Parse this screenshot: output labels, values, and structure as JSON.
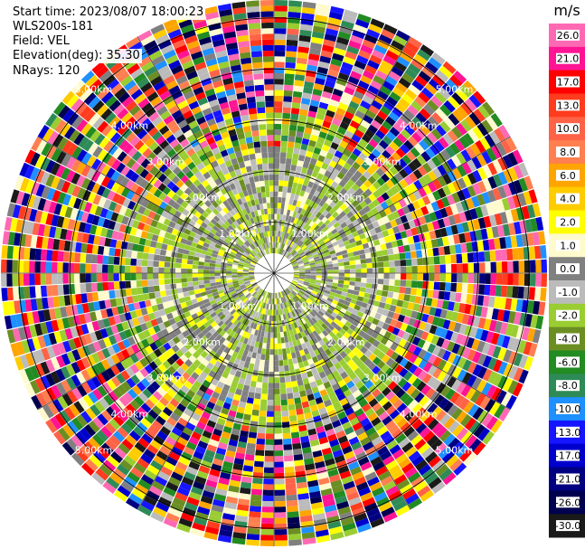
{
  "header": {
    "start_time": "Start time: 2023/08/07 18:00:23",
    "instrument": "WLS200s-181",
    "field": "Field: VEL",
    "elevation": "Elevation(deg): 35.30",
    "nrays": "NRays: 120"
  },
  "chart_data": {
    "type": "ppi",
    "field": "VEL",
    "units": "m/s",
    "nrays": 120,
    "elevation_deg": 35.3,
    "range_rings_km": [
      1,
      2,
      3,
      4,
      5
    ],
    "range_ring_labels": [
      "1.00km",
      "2.00km",
      "3.00km",
      "4.00km",
      "5.00km"
    ],
    "colorbar": {
      "label": "m/s",
      "levels": [
        26.0,
        21.0,
        17.0,
        13.0,
        10.0,
        8.0,
        6.0,
        4.0,
        2.0,
        1.0,
        0.0,
        -1.0,
        -2.0,
        -4.0,
        -6.0,
        -8.0,
        -10.0,
        -13.0,
        -17.0,
        -21.0,
        -26.0,
        -30.0
      ],
      "tick_labels": [
        "26.0",
        "21.0",
        "17.0",
        "13.0",
        "10.0",
        "8.0",
        "6.0",
        "4.0",
        "2.0",
        "1.0",
        "0.0",
        "-1.0",
        "-2.0",
        "-4.0",
        "-6.0",
        "-8.0",
        "-10.0",
        "-13.0",
        "-17.0",
        "-21.0",
        "-26.0",
        "-30.0"
      ],
      "colors": [
        "#ff69b4",
        "#ff1493",
        "#ff0000",
        "#ff3c1e",
        "#ff6347",
        "#ff7f50",
        "#ffa500",
        "#ffcc00",
        "#ffff00",
        "#fffacd",
        "#808080",
        "#bbbbbb",
        "#9acd32",
        "#6b8e23",
        "#228b22",
        "#2e8b57",
        "#1e90ff",
        "#1515ff",
        "#0000cd",
        "#000080",
        "#000050",
        "#1a1a1a"
      ]
    }
  }
}
